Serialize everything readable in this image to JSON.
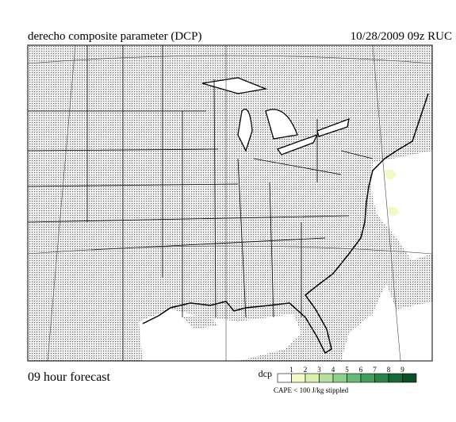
{
  "header": {
    "title": "derecho composite parameter (DCP)",
    "valid": "10/28/2009  09z  RUC"
  },
  "footer": {
    "forecast": "09 hour forecast"
  },
  "legend": {
    "label": "dcp",
    "ticks": [
      1,
      2,
      3,
      4,
      5,
      6,
      7,
      8,
      9
    ],
    "colors": [
      "#ffffff",
      "#f4f8c8",
      "#d9efb0",
      "#b7e0a0",
      "#8fcf8a",
      "#66bb77",
      "#419f5c",
      "#2a8447",
      "#176a36",
      "#0a4f26"
    ],
    "note": "CAPE < 100 J/kg stippled"
  }
}
